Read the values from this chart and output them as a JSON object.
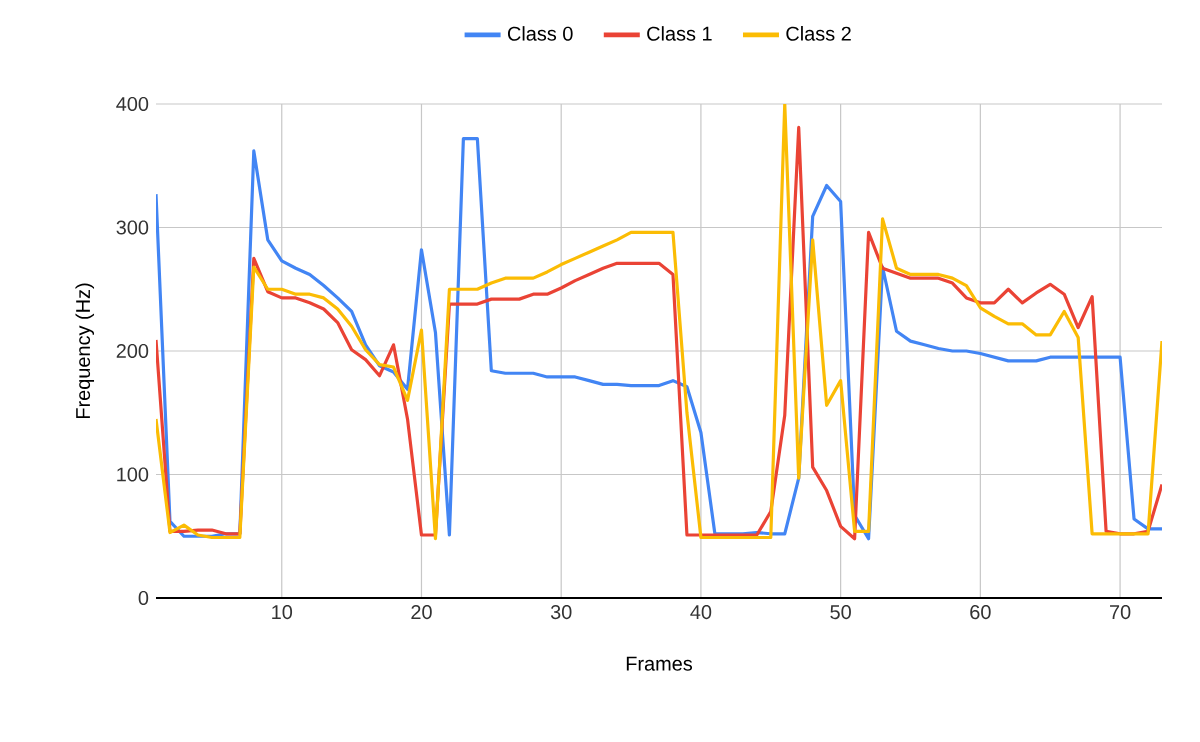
{
  "chart_data": {
    "type": "line",
    "xlabel": "Frames",
    "ylabel": "Frequency (Hz)",
    "legend": "top",
    "grid": true,
    "xlim": [
      1,
      73
    ],
    "ylim": [
      0,
      400
    ],
    "xticks": [
      10,
      20,
      30,
      40,
      50,
      60,
      70
    ],
    "yticks": [
      0,
      100,
      200,
      300,
      400
    ],
    "x": [
      1,
      2,
      3,
      4,
      5,
      6,
      7,
      8,
      9,
      10,
      11,
      12,
      13,
      14,
      15,
      16,
      17,
      18,
      19,
      20,
      21,
      22,
      23,
      24,
      25,
      26,
      27,
      28,
      29,
      30,
      31,
      32,
      33,
      34,
      35,
      36,
      37,
      38,
      39,
      40,
      41,
      42,
      43,
      44,
      45,
      46,
      47,
      48,
      49,
      50,
      51,
      52,
      53,
      54,
      55,
      56,
      57,
      58,
      59,
      60,
      61,
      62,
      63,
      64,
      65,
      66,
      67,
      68,
      69,
      70,
      71,
      72,
      73
    ],
    "series": [
      {
        "name": "Class 0",
        "color": "#4285f4",
        "values": [
          327,
          62,
          50,
          50,
          50,
          52,
          52,
          362,
          290,
          273,
          267,
          262,
          253,
          243,
          232,
          205,
          188,
          183,
          169,
          282,
          215,
          51,
          372,
          372,
          184,
          182,
          182,
          182,
          179,
          179,
          179,
          176,
          173,
          173,
          172,
          172,
          172,
          176,
          171,
          134,
          52,
          52,
          52,
          53,
          52,
          52,
          97,
          309,
          334,
          321,
          67,
          48,
          268,
          216,
          208,
          205,
          202,
          200,
          200,
          198,
          195,
          192,
          192,
          192,
          195,
          195,
          195,
          195,
          195,
          195,
          64,
          56,
          56
        ]
      },
      {
        "name": "Class 1",
        "color": "#ea4335",
        "values": [
          209,
          54,
          54,
          55,
          55,
          52,
          52,
          275,
          248,
          243,
          243,
          239,
          234,
          223,
          201,
          193,
          180,
          205,
          145,
          51,
          51,
          238,
          238,
          238,
          242,
          242,
          242,
          246,
          246,
          251,
          257,
          262,
          267,
          271,
          271,
          271,
          271,
          262,
          51,
          51,
          51,
          51,
          51,
          51,
          70,
          148,
          381,
          106,
          87,
          58,
          48,
          296,
          267,
          263,
          259,
          259,
          259,
          255,
          243,
          239,
          239,
          250,
          239,
          247,
          254,
          246,
          219,
          244,
          54,
          52,
          52,
          54,
          92
        ]
      },
      {
        "name": "Class 2",
        "color": "#fbbc04",
        "values": [
          145,
          53,
          59,
          51,
          49,
          49,
          49,
          268,
          250,
          250,
          246,
          246,
          243,
          234,
          220,
          201,
          189,
          187,
          160,
          217,
          48,
          250,
          250,
          250,
          255,
          259,
          259,
          259,
          264,
          270,
          275,
          280,
          285,
          290,
          296,
          296,
          296,
          296,
          150,
          49,
          49,
          49,
          49,
          49,
          49,
          400,
          97,
          290,
          156,
          176,
          54,
          54,
          307,
          267,
          262,
          262,
          262,
          259,
          253,
          235,
          228,
          222,
          222,
          213,
          213,
          232,
          211,
          52,
          52,
          52,
          52,
          52,
          208
        ]
      }
    ]
  }
}
